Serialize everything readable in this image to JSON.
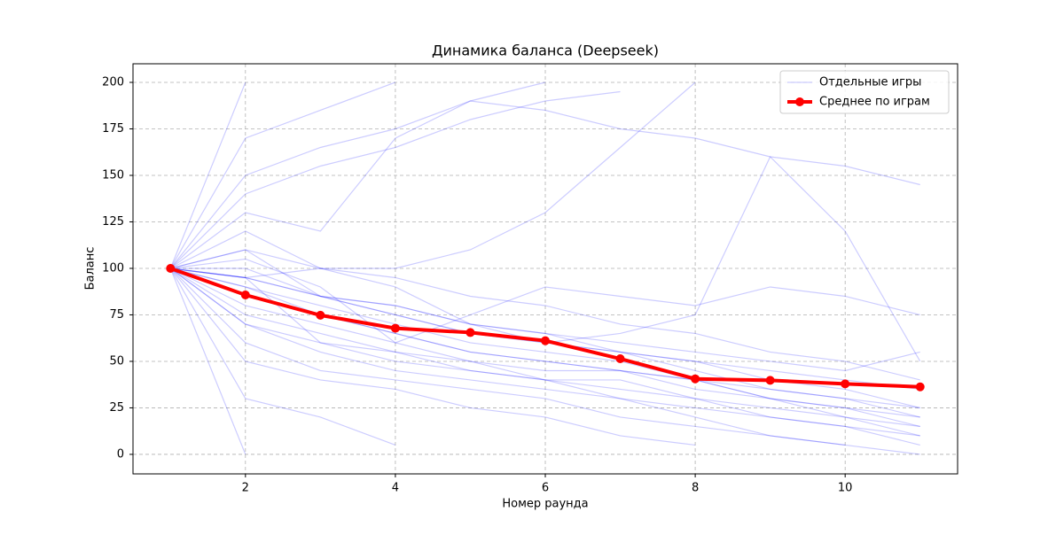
{
  "chart_data": {
    "type": "line",
    "title": "Динамика баланса (Deepseek)",
    "x_label": "Номер раунда",
    "y_label": "Баланс",
    "x": [
      1,
      2,
      3,
      4,
      5,
      6,
      7,
      8,
      9,
      10,
      11
    ],
    "xlim": [
      0.5,
      11.5
    ],
    "xticks": [
      2,
      4,
      6,
      8,
      10
    ],
    "ylim": [
      -10.5,
      210
    ],
    "yticks": [
      0,
      25,
      50,
      75,
      100,
      125,
      150,
      175,
      200
    ],
    "grid": true,
    "legend": "upper right",
    "series": [
      {
        "name": "Отдельные игры",
        "color": "#0000ff",
        "opacity": 0.2,
        "values": [
          [
            100,
            200,
            null,
            null,
            null,
            null,
            null,
            null,
            null,
            null,
            null
          ],
          [
            100,
            0,
            null,
            null,
            null,
            null,
            null,
            null,
            null,
            null,
            null
          ],
          [
            100,
            30,
            20,
            5,
            null,
            null,
            null,
            null,
            null,
            null,
            null
          ],
          [
            100,
            170,
            185,
            200,
            null,
            null,
            null,
            null,
            null,
            null,
            null
          ],
          [
            100,
            140,
            155,
            165,
            180,
            190,
            195,
            null,
            null,
            null,
            null
          ],
          [
            100,
            130,
            120,
            170,
            190,
            200,
            null,
            null,
            null,
            null,
            null
          ],
          [
            100,
            95,
            85,
            80,
            70,
            65,
            55,
            50,
            40,
            35,
            25
          ],
          [
            100,
            95,
            85,
            75,
            65,
            60,
            55,
            50,
            45,
            40,
            35
          ],
          [
            100,
            70,
            60,
            55,
            45,
            40,
            35,
            30,
            20,
            15,
            5
          ],
          [
            100,
            60,
            45,
            40,
            35,
            30,
            20,
            15,
            10,
            5,
            0
          ],
          [
            100,
            50,
            40,
            35,
            25,
            20,
            10,
            5,
            null,
            null,
            null
          ],
          [
            100,
            110,
            100,
            100,
            110,
            130,
            165,
            200,
            null,
            null,
            null
          ],
          [
            100,
            150,
            165,
            175,
            190,
            185,
            175,
            170,
            160,
            155,
            145
          ],
          [
            100,
            95,
            100,
            95,
            85,
            80,
            70,
            65,
            55,
            50,
            40
          ],
          [
            100,
            90,
            80,
            70,
            60,
            55,
            50,
            40,
            30,
            20,
            10
          ],
          [
            100,
            85,
            75,
            65,
            55,
            50,
            45,
            40,
            30,
            25,
            15
          ],
          [
            100,
            105,
            90,
            60,
            50,
            40,
            30,
            20,
            10,
            5,
            null
          ],
          [
            100,
            80,
            70,
            60,
            75,
            90,
            85,
            80,
            90,
            85,
            75
          ],
          [
            100,
            110,
            85,
            75,
            65,
            60,
            55,
            45,
            35,
            30,
            20
          ],
          [
            100,
            120,
            100,
            90,
            70,
            60,
            65,
            75,
            160,
            120,
            50
          ],
          [
            100,
            75,
            65,
            55,
            50,
            45,
            45,
            35,
            30,
            25,
            20
          ],
          [
            100,
            95,
            60,
            50,
            45,
            40,
            40,
            30,
            25,
            20,
            15
          ],
          [
            100,
            70,
            55,
            45,
            40,
            35,
            30,
            25,
            20,
            15,
            10
          ],
          [
            100,
            100,
            85,
            80,
            70,
            65,
            60,
            55,
            50,
            45,
            55
          ],
          [
            100,
            90,
            75,
            65,
            55,
            50,
            45,
            40,
            35,
            30,
            25
          ]
        ]
      },
      {
        "name": "Среднее по играм",
        "color": "#ff0000",
        "values": [
          100,
          85.7,
          74.8,
          67.8,
          65.5,
          61.1,
          51.4,
          40.6,
          39.8,
          37.9,
          36.3
        ]
      }
    ]
  }
}
